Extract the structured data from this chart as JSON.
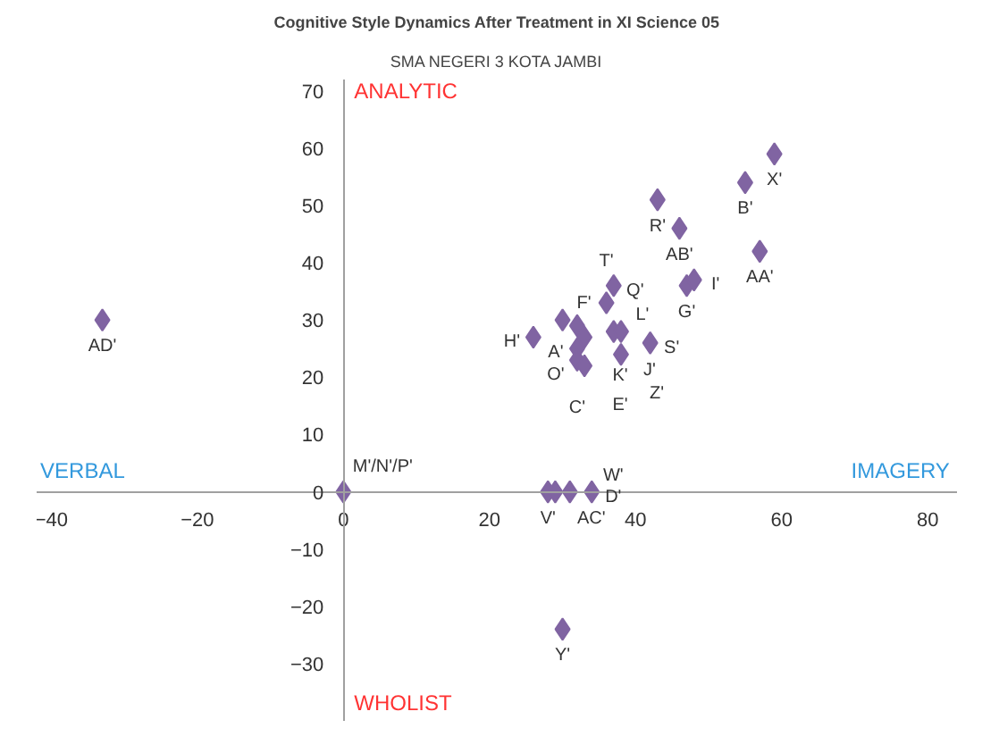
{
  "chart_data": {
    "type": "scatter",
    "title": "Cognitive Style Dynamics After Treatment in XI Science 05",
    "subtitle": "SMA NEGERI 3 KOTA JAMBI",
    "xlabel": "IMAGERY",
    "ylabel": "ANALYTIC",
    "x": [
      30,
      32,
      33,
      32,
      32,
      33,
      26,
      37,
      36,
      37,
      38,
      38,
      42,
      43,
      46,
      47,
      48,
      59,
      55,
      57,
      -33,
      0,
      28,
      29,
      31,
      34,
      30
    ],
    "series": [
      {
        "color": "#8064a2",
        "values": [
          30,
          29,
          27,
          25,
          23,
          22,
          27,
          36,
          33,
          28,
          28,
          24,
          26,
          51,
          46,
          36,
          37,
          59,
          54,
          42,
          30,
          0,
          0,
          0,
          0,
          0,
          -24
        ]
      }
    ],
    "annotations": [
      "VERBAL",
      "WHOLIST",
      {
        "text": "F'",
        "x": 30,
        "y": 30
      },
      {
        "text": "A'",
        "x": 32,
        "y": 29
      },
      {
        "text": "K'",
        "x": 33,
        "y": 27
      },
      {
        "text": "O'",
        "x": 32,
        "y": 25
      },
      {
        "text": "C'",
        "x": 32,
        "y": 23
      },
      {
        "text": "E'",
        "x": 33,
        "y": 22
      },
      {
        "text": "H'",
        "x": 26,
        "y": 27
      },
      {
        "text": "Q'",
        "x": 37,
        "y": 36
      },
      {
        "text": "T'",
        "x": 36,
        "y": 33
      },
      {
        "text": "J'",
        "x": 37,
        "y": 28
      },
      {
        "text": "L'",
        "x": 38,
        "y": 28
      },
      {
        "text": "Z'",
        "x": 38,
        "y": 24
      },
      {
        "text": "S'",
        "x": 42,
        "y": 26
      },
      {
        "text": "R'",
        "x": 43,
        "y": 51
      },
      {
        "text": "AB'",
        "x": 46,
        "y": 46
      },
      {
        "text": "G'",
        "x": 47,
        "y": 36
      },
      {
        "text": "I'",
        "x": 48,
        "y": 37
      },
      {
        "text": "X'",
        "x": 59,
        "y": 59
      },
      {
        "text": "B'",
        "x": 55,
        "y": 54
      },
      {
        "text": "AA'",
        "x": 57,
        "y": 42
      },
      {
        "text": "AD'",
        "x": -33,
        "y": 30
      },
      {
        "text": "M'/N'/P'",
        "x": 0,
        "y": 0
      },
      {
        "text": "V'",
        "x": 28,
        "y": 0
      },
      {
        "text": "AC'",
        "x": 31,
        "y": 0
      },
      {
        "text": "D'",
        "x": 34,
        "y": 0
      },
      {
        "text": "W'",
        "x": 34,
        "y": 0
      },
      {
        "text": "Y'",
        "x": 30,
        "y": -24
      }
    ],
    "xlim": [
      -42,
      84
    ],
    "ylim": [
      -40,
      72
    ],
    "xticks": [
      -40,
      -20,
      0,
      20,
      40,
      60,
      80
    ],
    "yticks": [
      -30,
      -20,
      -10,
      0,
      10,
      20,
      30,
      40,
      50,
      60,
      70
    ],
    "marker": "diamond",
    "grid": false
  }
}
